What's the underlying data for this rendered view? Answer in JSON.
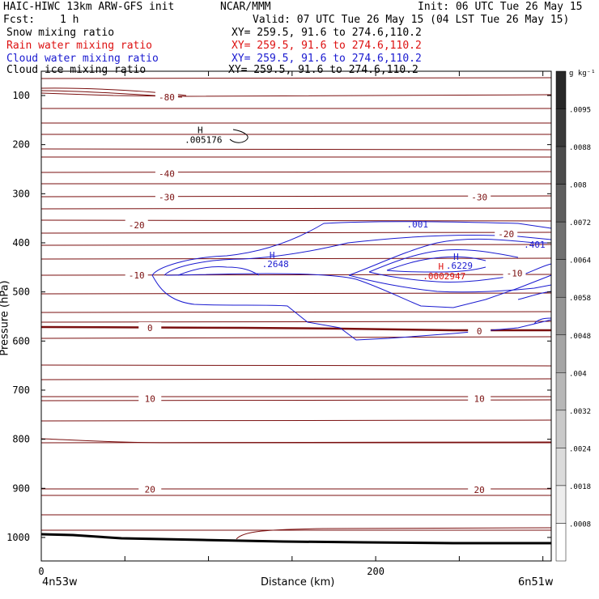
{
  "header": {
    "model": "HAIC-HIWC 13km ARW-GFS init",
    "org": "NCAR/MMM",
    "init": "Init: 06 UTC Tue 26 May 15",
    "fcst_label": "Fcst:",
    "fcst_value": "1 h",
    "valid": "Valid: 07 UTC Tue 26 May 15 (04 LST Tue 26 May 15)"
  },
  "fields": [
    {
      "name": "Snow mixing ratio",
      "xy": "XY= 259.5, 91.6 to 274.6,110.2",
      "color": "#000000"
    },
    {
      "name": "Rain water mixing ratio",
      "xy": "XY= 259.5, 91.6 to 274.6,110.2",
      "color": "#dd1111"
    },
    {
      "name": "Cloud water mixing ratio",
      "xy": "XY= 259.5, 91.6 to 274.6,110.2",
      "color": "#1a1ad0"
    },
    {
      "name": "Cloud ice mixing ratio",
      "xy": "XY= 259.5, 91.6 to 274.6,110.2",
      "color": "#000000"
    }
  ],
  "chart_data": {
    "type": "cross-section contour",
    "xlabel": "Distance (km)",
    "ylabel": "Pressure (hPa)",
    "x_ticks": [
      "0",
      "200"
    ],
    "x_tick_values": [
      0,
      200
    ],
    "xlim": [
      0,
      305
    ],
    "y_ticks": [
      "100",
      "200",
      "300",
      "400",
      "500",
      "600",
      "700",
      "800",
      "900",
      "1000"
    ],
    "ylim": [
      1050,
      65
    ],
    "endpoint_left": "4n53w",
    "endpoint_right": "6n51w",
    "temperature_contours": {
      "color": "#7a0f0f",
      "labels": [
        {
          "text": "-80",
          "x": 75,
          "p": 103
        },
        {
          "text": "-40",
          "x": 75,
          "p": 259
        },
        {
          "text": "-30",
          "x": 75,
          "p": 307
        },
        {
          "text": "-30",
          "x": 262,
          "p": 307
        },
        {
          "text": "-20",
          "x": 57,
          "p": 364
        },
        {
          "text": "-20",
          "x": 278,
          "p": 382
        },
        {
          "text": "-10",
          "x": 57,
          "p": 466
        },
        {
          "text": "-10",
          "x": 283,
          "p": 462
        },
        {
          "text": "0",
          "x": 65,
          "p": 573
        },
        {
          "text": "0",
          "x": 262,
          "p": 580
        },
        {
          "text": "10",
          "x": 65,
          "p": 717
        },
        {
          "text": "10",
          "x": 262,
          "p": 717
        },
        {
          "text": "20",
          "x": 65,
          "p": 902
        },
        {
          "text": "20",
          "x": 262,
          "p": 903
        }
      ]
    },
    "cloud_water_labels": [
      {
        "text": ".001",
        "x": 225,
        "p": 362
      },
      {
        "text": ".401",
        "x": 295,
        "p": 403
      },
      {
        "text": ".2648",
        "x": 140,
        "p": 443
      },
      {
        "text": ".6229",
        "x": 250,
        "p": 446
      }
    ],
    "maxima": [
      {
        "text": ".005176",
        "x": 97,
        "p": 190,
        "color": "#000000"
      },
      {
        "text": ".0002947",
        "x": 241,
        "p": 468,
        "color": "#dd1111"
      }
    ],
    "colorbar": {
      "unit": "g kg⁻¹",
      "labels": [
        ".0095",
        ".0088",
        ".008",
        ".0072",
        ".0064",
        ".0058",
        ".0048",
        ".004",
        ".0032",
        ".0024",
        ".0018",
        ".0008"
      ]
    }
  }
}
